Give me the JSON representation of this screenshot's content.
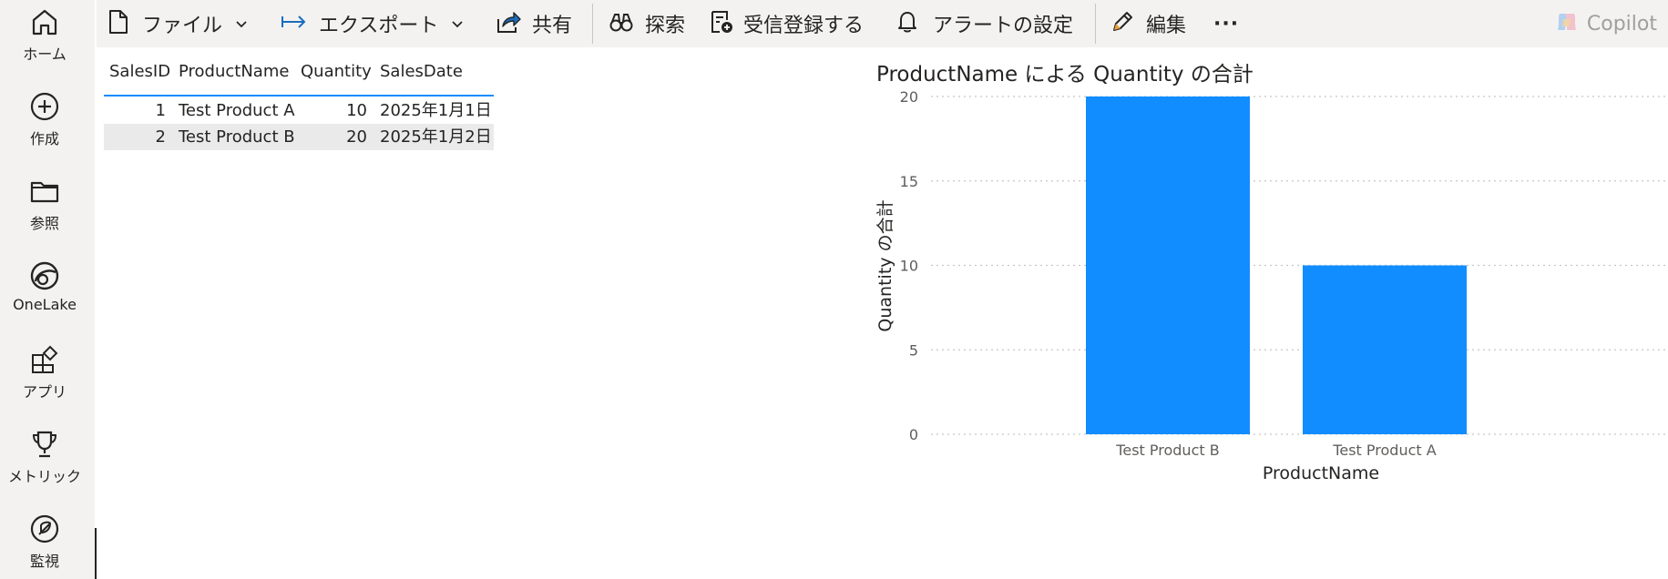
{
  "nav": {
    "items": [
      {
        "label": "ホーム",
        "icon": "home-icon"
      },
      {
        "label": "作成",
        "icon": "create-plus-icon"
      },
      {
        "label": "参照",
        "icon": "folder-icon"
      },
      {
        "label": "OneLake",
        "icon": "onelake-icon"
      },
      {
        "label": "アプリ",
        "icon": "apps-icon"
      },
      {
        "label": "メトリック",
        "icon": "trophy-icon"
      },
      {
        "label": "監視",
        "icon": "monitor-icon"
      }
    ]
  },
  "toolbar": {
    "file": "ファイル",
    "export": "エクスポート",
    "share": "共有",
    "explore": "探索",
    "subscribe": "受信登録する",
    "alerts": "アラートの設定",
    "edit": "編集",
    "more": "···",
    "copilot": "Copilot"
  },
  "table": {
    "headers": [
      "SalesID",
      "ProductName",
      "Quantity",
      "SalesDate"
    ],
    "rows": [
      [
        "1",
        "Test Product A",
        "10",
        "2025年1月1日"
      ],
      [
        "2",
        "Test Product B",
        "20",
        "2025年1月2日"
      ]
    ]
  },
  "colors": {
    "accent": "#118dff",
    "rail_bg": "#f3f2f1",
    "row_highlight": "#eaeaea"
  },
  "chart_data": {
    "type": "bar",
    "title": "ProductName による Quantity の合計",
    "xlabel": "ProductName",
    "ylabel": "Quantity の合計",
    "categories": [
      "Test Product B",
      "Test Product A"
    ],
    "values": [
      20,
      10
    ],
    "ylim": [
      0,
      20
    ],
    "yticks": [
      "0",
      "5",
      "10",
      "15",
      "20"
    ],
    "grid": true,
    "color": "#118dff"
  }
}
